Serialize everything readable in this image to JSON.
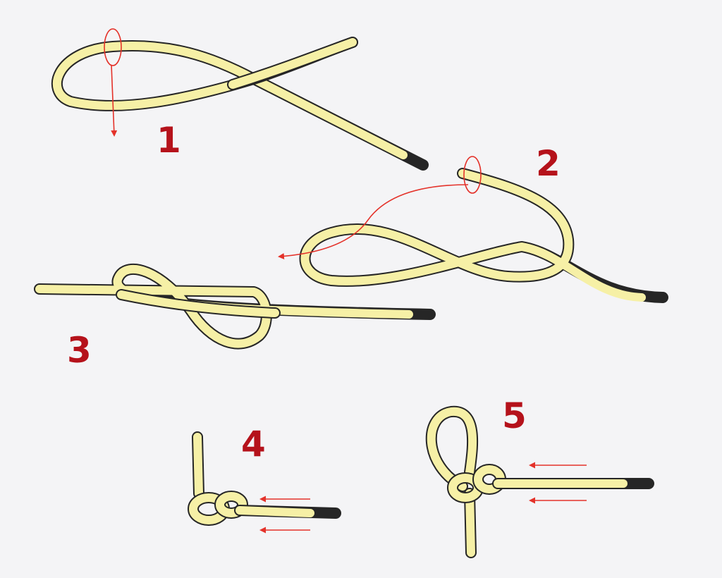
{
  "colors": {
    "background": "#f4f4f6",
    "rope_fill": "#f6f0a6",
    "rope_outline": "#262626",
    "step_number": "#b5121b",
    "arrow": "#e4322a"
  },
  "steps": [
    {
      "label": "1"
    },
    {
      "label": "2"
    },
    {
      "label": "3"
    },
    {
      "label": "4"
    },
    {
      "label": "5"
    }
  ]
}
